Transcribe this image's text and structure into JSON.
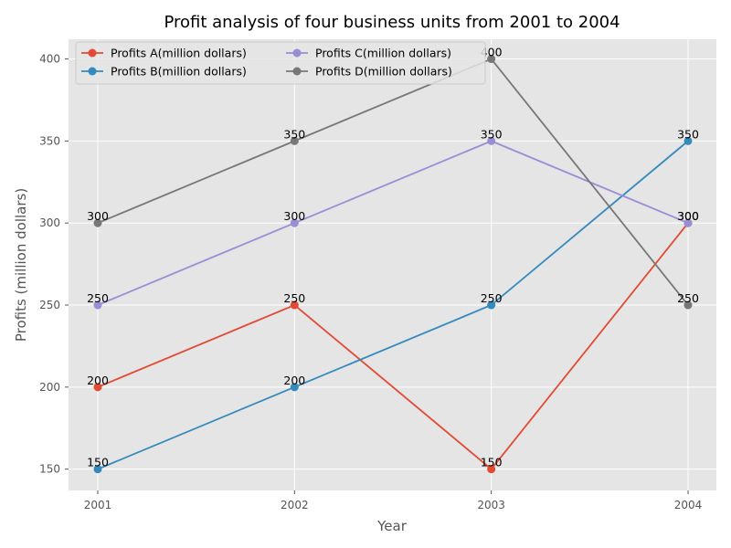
{
  "chart_data": {
    "type": "line",
    "title": "Profit analysis of four business units from 2001 to 2004",
    "xlabel": "Year",
    "ylabel": "Profits (million dollars)",
    "categories": [
      "2001",
      "2002",
      "2003",
      "2004"
    ],
    "yticks": [
      "150",
      "200",
      "250",
      "300",
      "350",
      "400"
    ],
    "ylim": [
      137,
      412
    ],
    "grid": true,
    "legend_position": "top-left",
    "legend_columns": 2,
    "series": [
      {
        "name": "Profits A(million dollars)",
        "color": "#E24A33",
        "values": [
          200,
          250,
          150,
          300
        ]
      },
      {
        "name": "Profits B(million dollars)",
        "color": "#348ABD",
        "values": [
          150,
          200,
          250,
          350
        ]
      },
      {
        "name": "Profits C(million dollars)",
        "color": "#988ED5",
        "values": [
          250,
          300,
          350,
          300
        ]
      },
      {
        "name": "Profits D(million dollars)",
        "color": "#777777",
        "values": [
          300,
          350,
          400,
          250
        ]
      }
    ]
  }
}
